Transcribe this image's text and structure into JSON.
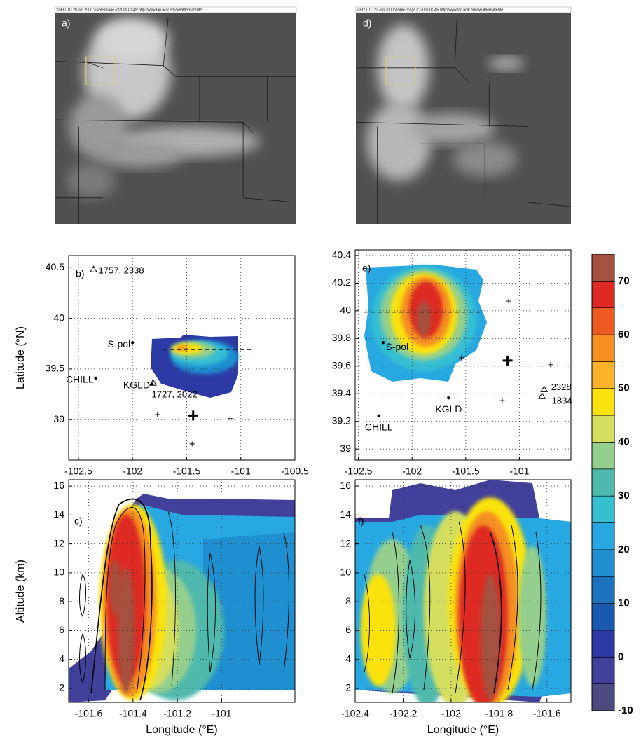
{
  "chart_data": [
    {
      "type": "image",
      "panel_label": "a)",
      "header": "2333 UTC 29 Jun 2000   Visible Image   (c)2000 UCAR   http://www.rap.ucar.edu/weather/satellite"
    },
    {
      "type": "image",
      "panel_label": "d)",
      "header": "2332 UTC 22 Jun 2000   Visible Image   (c)2000 UCAR   http://www.rap.ucar.edu/weather/satellite"
    },
    {
      "type": "map",
      "panel_label": "b)",
      "ylabel": "Latitude (°N)",
      "xlim": [
        -102.59,
        -100.5
      ],
      "xticks": [
        -102.5,
        -102,
        -101.5,
        -101,
        -100.5
      ],
      "ylim": [
        38.6,
        40.62
      ],
      "yticks": [
        39,
        39.5,
        40,
        40.5
      ],
      "grid": true,
      "stations": [
        {
          "name": "S-pol",
          "x": -102.0,
          "y": 39.76
        },
        {
          "name": "KGLD",
          "x": -101.82,
          "y": 39.35
        },
        {
          "name": "CHILL",
          "x": -102.34,
          "y": 39.41
        }
      ],
      "triangles": [
        {
          "label": "1757, 2338",
          "x": -102.36,
          "y": 40.48
        },
        {
          "label": "1727, 2022",
          "x": -101.81,
          "y": 39.36
        }
      ],
      "crosses": {
        "x": [
          -101.77,
          -101.45,
          -101.1
        ],
        "y": [
          39.05,
          38.76,
          39.01
        ]
      },
      "big_cross": {
        "x": -101.44,
        "y": 39.04
      },
      "section_line": {
        "x": [
          -101.72,
          -100.88
        ],
        "y": [
          39.69,
          39.69
        ]
      }
    },
    {
      "type": "map",
      "panel_label": "e)",
      "xlim": [
        -102.53,
        -100.52
      ],
      "xticks": [
        -102.5,
        -102,
        -101.5,
        -101
      ],
      "ylim": [
        38.92,
        40.44
      ],
      "yticks": [
        39,
        39.2,
        39.4,
        39.6,
        39.8,
        40,
        40.2,
        40.4
      ],
      "grid": true,
      "stations": [
        {
          "name": "S-pol",
          "x": -102.27,
          "y": 39.77
        },
        {
          "name": "KGLD",
          "x": -101.66,
          "y": 39.37
        },
        {
          "name": "CHILL",
          "x": -102.31,
          "y": 39.24
        }
      ],
      "triangles": [
        {
          "label": "2328",
          "x": -100.77,
          "y": 39.43
        },
        {
          "label": "1834",
          "x": -100.79,
          "y": 39.38
        }
      ],
      "crosses": {
        "x": [
          -101.1,
          -101.54,
          -101.16,
          -100.71
        ],
        "y": [
          40.07,
          39.66,
          39.35,
          39.61
        ]
      },
      "big_cross": {
        "x": -101.11,
        "y": 39.64
      },
      "section_line": {
        "x": [
          -102.45,
          -101.34
        ],
        "y": [
          39.99,
          39.99
        ]
      }
    },
    {
      "type": "section",
      "panel_label": "c)",
      "xlabel": "Longitude (°E)",
      "ylabel": "Altitude (km)",
      "xlim": [
        -101.69,
        -100.67
      ],
      "xticks": [
        -101.6,
        -101.4,
        -101.2,
        -101
      ],
      "ylim": [
        1.03,
        16.44
      ],
      "yticks": [
        2,
        4,
        6,
        8,
        10,
        12,
        14,
        16
      ],
      "grid": true
    },
    {
      "type": "section",
      "panel_label": "f)",
      "xlabel": "Longitude (°E)",
      "xlim": [
        -102.4,
        -101.5
      ],
      "xticks": [
        -102.4,
        -102.2,
        -102,
        -101.8,
        -101.6
      ],
      "ylim": [
        1.03,
        16.44
      ],
      "yticks": [
        2,
        4,
        6,
        8,
        10,
        12,
        14,
        16
      ],
      "grid": true
    },
    {
      "type": "colorbar",
      "ylim": [
        -10,
        75
      ],
      "yticks": [
        -10,
        0,
        10,
        20,
        30,
        40,
        50,
        60,
        70
      ],
      "levels": [
        -10,
        -5,
        0,
        5,
        10,
        15,
        20,
        25,
        30,
        35,
        40,
        45,
        50,
        55,
        60,
        65,
        70,
        75
      ],
      "colors": [
        "#4b4b82",
        "#41409a",
        "#2d3aa6",
        "#1a5aae",
        "#1b73bd",
        "#1f8fd0",
        "#28a8e0",
        "#35bfd3",
        "#4fb9ad",
        "#94cf8e",
        "#d5df5e",
        "#fae20c",
        "#fbb42a",
        "#f58f22",
        "#ee5b22",
        "#de2a22",
        "#a5513f"
      ]
    }
  ]
}
